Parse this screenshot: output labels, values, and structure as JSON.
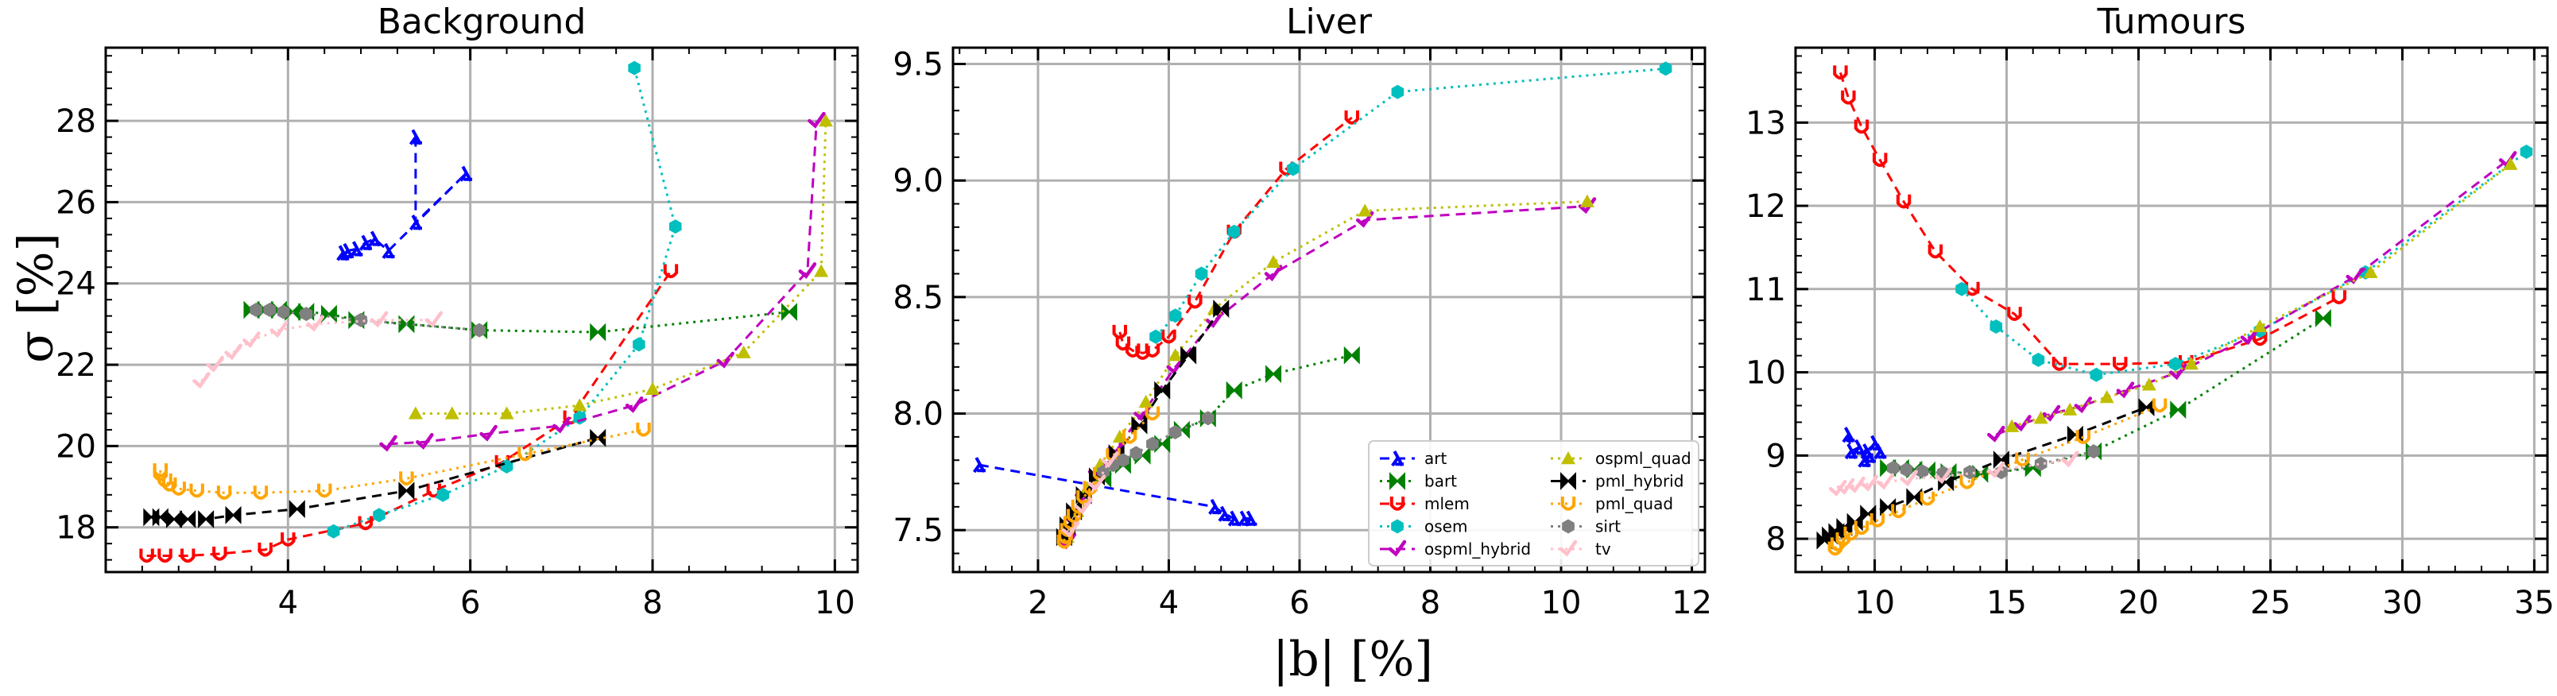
{
  "figure": {
    "ylabel": "σ [%]",
    "xlabel": "|b| [%]"
  },
  "legend": {
    "placement": "lower-right of the Liver panel, 2 columns",
    "entries": [
      "art",
      "bart",
      "mlem",
      "osem",
      "ospml_hybrid",
      "ospml_quad",
      "pml_hybrid",
      "pml_quad",
      "sirt",
      "tv"
    ]
  },
  "styles": {
    "art": {
      "color": "#0000ff",
      "dash": "dashed",
      "marker": "lambda"
    },
    "bart": {
      "color": "#008000",
      "dash": "dotted",
      "marker": "bowtie"
    },
    "mlem": {
      "color": "#ff0000",
      "dash": "dashed",
      "marker": "u"
    },
    "osem": {
      "color": "#00bfbf",
      "dash": "dotted",
      "marker": "hexagon"
    },
    "ospml_hybrid": {
      "color": "#bf00bf",
      "dash": "dashed",
      "marker": "tick"
    },
    "ospml_quad": {
      "color": "#bfbf00",
      "dash": "dotted",
      "marker": "triangle"
    },
    "pml_hybrid": {
      "color": "#000000",
      "dash": "dashed",
      "marker": "bowtie"
    },
    "pml_quad": {
      "color": "#ffa500",
      "dash": "dotted",
      "marker": "u"
    },
    "sirt": {
      "color": "#808080",
      "dash": "dotted",
      "marker": "hexagon"
    },
    "tv": {
      "color": "#ffc0cb",
      "dash": "dotted",
      "marker": "tick"
    }
  },
  "chart_data": [
    {
      "type": "line",
      "title": "Background",
      "xlim": [
        2.0,
        10.25
      ],
      "ylim": [
        16.9,
        29.8
      ],
      "xticks": [
        4,
        6,
        8,
        10
      ],
      "yticks": [
        18,
        20,
        22,
        24,
        26,
        28
      ],
      "grid": true,
      "series": [
        {
          "name": "art",
          "x": [
            5.4,
            5.4,
            5.95,
            5.1,
            4.95,
            4.85,
            4.75,
            4.65,
            4.6
          ],
          "y": [
            27.6,
            25.5,
            26.7,
            24.8,
            25.1,
            25.0,
            24.85,
            24.8,
            24.75
          ]
        },
        {
          "name": "bart",
          "x": [
            3.6,
            3.75,
            3.9,
            4.05,
            4.2,
            4.45,
            4.75,
            5.3,
            6.1,
            7.4,
            9.5
          ],
          "y": [
            23.35,
            23.35,
            23.35,
            23.3,
            23.3,
            23.25,
            23.1,
            23.0,
            22.85,
            22.8,
            23.3
          ]
        },
        {
          "name": "mlem",
          "x": [
            2.45,
            2.65,
            2.9,
            3.25,
            3.75,
            4.0,
            4.85,
            5.6,
            6.35,
            7.1,
            8.2
          ],
          "y": [
            17.3,
            17.3,
            17.3,
            17.35,
            17.45,
            17.7,
            18.1,
            18.9,
            19.6,
            20.7,
            24.3
          ]
        },
        {
          "name": "osem",
          "x": [
            4.5,
            5.0,
            5.7,
            6.4,
            7.2,
            7.85,
            8.25,
            7.8
          ],
          "y": [
            17.9,
            18.3,
            18.8,
            19.5,
            20.7,
            22.5,
            25.4,
            29.3
          ]
        },
        {
          "name": "ospml_hybrid",
          "x": [
            5.1,
            5.5,
            6.2,
            7.0,
            7.8,
            8.8,
            9.7,
            9.8
          ],
          "y": [
            20.05,
            20.1,
            20.3,
            20.5,
            21.0,
            22.1,
            24.3,
            28.0
          ]
        },
        {
          "name": "ospml_quad",
          "x": [
            5.4,
            5.8,
            6.4,
            7.2,
            8.0,
            9.0,
            9.85,
            9.9
          ],
          "y": [
            20.8,
            20.8,
            20.8,
            21.0,
            21.4,
            22.3,
            24.3,
            28.0
          ]
        },
        {
          "name": "pml_hybrid",
          "x": [
            2.5,
            2.6,
            2.75,
            2.9,
            3.1,
            3.4,
            4.1,
            5.3,
            7.4
          ],
          "y": [
            18.25,
            18.25,
            18.2,
            18.2,
            18.2,
            18.3,
            18.45,
            18.9,
            20.2
          ]
        },
        {
          "name": "pml_quad",
          "x": [
            2.6,
            2.6,
            2.65,
            2.7,
            2.8,
            3.0,
            3.3,
            3.7,
            4.4,
            5.3,
            6.6,
            7.9
          ],
          "y": [
            19.4,
            19.3,
            19.15,
            19.05,
            18.95,
            18.9,
            18.85,
            18.85,
            18.9,
            19.2,
            19.8,
            20.4
          ]
        },
        {
          "name": "sirt",
          "x": [
            3.65,
            3.8,
            3.95,
            4.2,
            4.8,
            6.1
          ],
          "y": [
            23.35,
            23.35,
            23.3,
            23.25,
            23.1,
            22.85
          ]
        },
        {
          "name": "tv",
          "x": [
            3.05,
            3.2,
            3.4,
            3.6,
            3.9,
            4.3,
            5.0,
            5.6
          ],
          "y": [
            21.6,
            22.0,
            22.3,
            22.6,
            22.85,
            23.0,
            23.1,
            23.1
          ]
        }
      ]
    },
    {
      "type": "line",
      "title": "Liver",
      "xlim": [
        0.7,
        12.2
      ],
      "ylim": [
        7.32,
        9.57
      ],
      "xticks": [
        2,
        4,
        6,
        8,
        10,
        12
      ],
      "yticks": [
        7.5,
        8.0,
        8.5,
        9.0,
        9.5
      ],
      "grid": true,
      "series": [
        {
          "name": "art",
          "x": [
            1.1,
            4.7,
            4.85,
            5.0,
            5.15,
            5.25
          ],
          "y": [
            7.78,
            7.6,
            7.57,
            7.55,
            7.55,
            7.55
          ]
        },
        {
          "name": "bart",
          "x": [
            3.0,
            3.3,
            3.6,
            3.9,
            4.2,
            4.6,
            5.0,
            5.6,
            6.8
          ],
          "y": [
            7.72,
            7.78,
            7.82,
            7.87,
            7.93,
            7.98,
            8.1,
            8.17,
            8.25
          ]
        },
        {
          "name": "mlem",
          "x": [
            3.25,
            3.3,
            3.45,
            3.6,
            3.75,
            4.0,
            4.4,
            5.0,
            5.8,
            6.8
          ],
          "y": [
            8.35,
            8.3,
            8.27,
            8.26,
            8.27,
            8.33,
            8.48,
            8.78,
            9.05,
            9.27
          ]
        },
        {
          "name": "osem",
          "x": [
            3.8,
            4.1,
            4.5,
            5.0,
            5.9,
            7.5,
            11.6
          ],
          "y": [
            8.33,
            8.42,
            8.6,
            8.78,
            9.05,
            9.38,
            9.48
          ]
        },
        {
          "name": "ospml_hybrid",
          "x": [
            2.45,
            2.55,
            2.7,
            2.9,
            3.2,
            3.6,
            4.1,
            4.7,
            5.6,
            7.0,
            10.4
          ],
          "y": [
            7.45,
            7.55,
            7.65,
            7.75,
            7.85,
            8.0,
            8.2,
            8.4,
            8.6,
            8.83,
            8.89
          ]
        },
        {
          "name": "ospml_quad",
          "x": [
            2.45,
            2.6,
            2.75,
            2.95,
            3.25,
            3.65,
            4.1,
            4.7,
            5.6,
            7.0,
            10.4
          ],
          "y": [
            7.47,
            7.58,
            7.68,
            7.78,
            7.9,
            8.05,
            8.25,
            8.45,
            8.65,
            8.87,
            8.91
          ]
        },
        {
          "name": "pml_hybrid",
          "x": [
            2.4,
            2.45,
            2.55,
            2.7,
            2.9,
            3.2,
            3.55,
            3.9,
            4.3,
            4.8
          ],
          "y": [
            7.47,
            7.52,
            7.58,
            7.65,
            7.73,
            7.83,
            7.95,
            8.1,
            8.25,
            8.45
          ]
        },
        {
          "name": "pml_quad",
          "x": [
            2.4,
            2.42,
            2.45,
            2.5,
            2.55,
            2.62,
            2.7,
            2.8,
            2.95,
            3.15,
            3.4,
            3.75
          ],
          "y": [
            7.45,
            7.47,
            7.5,
            7.53,
            7.56,
            7.6,
            7.64,
            7.68,
            7.74,
            7.82,
            7.9,
            8.0
          ]
        },
        {
          "name": "sirt",
          "x": [
            3.0,
            3.15,
            3.3,
            3.5,
            3.75,
            4.1,
            4.6
          ],
          "y": [
            7.75,
            7.78,
            7.8,
            7.83,
            7.87,
            7.92,
            7.98
          ]
        },
        {
          "name": "tv",
          "x": [
            2.5,
            2.7,
            2.9,
            3.1
          ],
          "y": [
            7.5,
            7.6,
            7.7,
            7.8
          ]
        }
      ]
    },
    {
      "type": "line",
      "title": "Tumours",
      "xlim": [
        7.0,
        35.5
      ],
      "ylim": [
        7.6,
        13.9
      ],
      "xticks": [
        10,
        15,
        20,
        25,
        30,
        35
      ],
      "yticks": [
        8,
        9,
        10,
        11,
        12,
        13
      ],
      "grid": true,
      "series": [
        {
          "name": "art",
          "x": [
            9.0,
            9.1,
            9.4,
            9.7,
            10.0,
            10.2,
            9.8,
            9.6
          ],
          "y": [
            9.25,
            9.05,
            9.1,
            9.05,
            9.15,
            9.05,
            9.0,
            8.95
          ]
        },
        {
          "name": "bart",
          "x": [
            10.5,
            11.0,
            11.5,
            12.0,
            12.8,
            14.0,
            16.0,
            18.3,
            21.5,
            27.0
          ],
          "y": [
            8.85,
            8.85,
            8.83,
            8.82,
            8.8,
            8.78,
            8.85,
            9.05,
            9.55,
            10.65
          ]
        },
        {
          "name": "mlem",
          "x": [
            8.7,
            9.0,
            9.5,
            10.2,
            11.1,
            12.3,
            13.7,
            15.3,
            17.0,
            19.3,
            21.8,
            24.6,
            27.6
          ],
          "y": [
            13.6,
            13.3,
            12.95,
            12.55,
            12.05,
            11.45,
            11.0,
            10.7,
            10.1,
            10.1,
            10.12,
            10.4,
            10.9
          ]
        },
        {
          "name": "osem",
          "x": [
            13.3,
            14.6,
            16.2,
            18.4,
            21.4,
            24.6,
            28.6,
            34.7
          ],
          "y": [
            11.0,
            10.55,
            10.15,
            9.97,
            10.1,
            10.5,
            11.2,
            12.65
          ]
        },
        {
          "name": "ospml_hybrid",
          "x": [
            14.6,
            15.6,
            16.7,
            17.9,
            19.5,
            21.5,
            24.2,
            28.2,
            34.0
          ],
          "y": [
            9.25,
            9.38,
            9.5,
            9.6,
            9.78,
            10.0,
            10.42,
            11.15,
            12.55
          ]
        },
        {
          "name": "ospml_quad",
          "x": [
            15.2,
            16.3,
            17.4,
            18.8,
            20.4,
            22.0,
            24.6,
            28.8,
            34.1
          ],
          "y": [
            9.35,
            9.45,
            9.55,
            9.7,
            9.85,
            10.1,
            10.55,
            11.2,
            12.5
          ]
        },
        {
          "name": "pml_hybrid",
          "x": [
            8.1,
            8.3,
            8.55,
            8.85,
            9.25,
            9.75,
            10.5,
            11.5,
            12.7,
            14.8,
            17.6,
            20.3
          ],
          "y": [
            7.98,
            8.04,
            8.08,
            8.14,
            8.2,
            8.3,
            8.38,
            8.5,
            8.68,
            8.95,
            9.25,
            9.58
          ]
        },
        {
          "name": "pml_quad",
          "x": [
            8.5,
            8.6,
            8.8,
            9.1,
            9.5,
            10.1,
            10.9,
            12.0,
            13.5,
            15.6,
            17.9,
            20.8
          ],
          "y": [
            7.88,
            7.93,
            7.99,
            8.06,
            8.13,
            8.22,
            8.33,
            8.48,
            8.68,
            8.95,
            9.22,
            9.6
          ]
        },
        {
          "name": "sirt",
          "x": [
            10.7,
            11.2,
            11.8,
            12.6,
            13.6,
            14.8,
            16.3,
            18.3
          ],
          "y": [
            8.85,
            8.83,
            8.81,
            8.79,
            8.8,
            8.8,
            8.9,
            9.05
          ]
        },
        {
          "name": "tv",
          "x": [
            8.6,
            8.9,
            9.3,
            9.8,
            10.4,
            11.3,
            12.6,
            14.6,
            17.4
          ],
          "y": [
            8.6,
            8.62,
            8.64,
            8.66,
            8.68,
            8.72,
            8.75,
            8.82,
            8.95
          ]
        }
      ]
    }
  ]
}
